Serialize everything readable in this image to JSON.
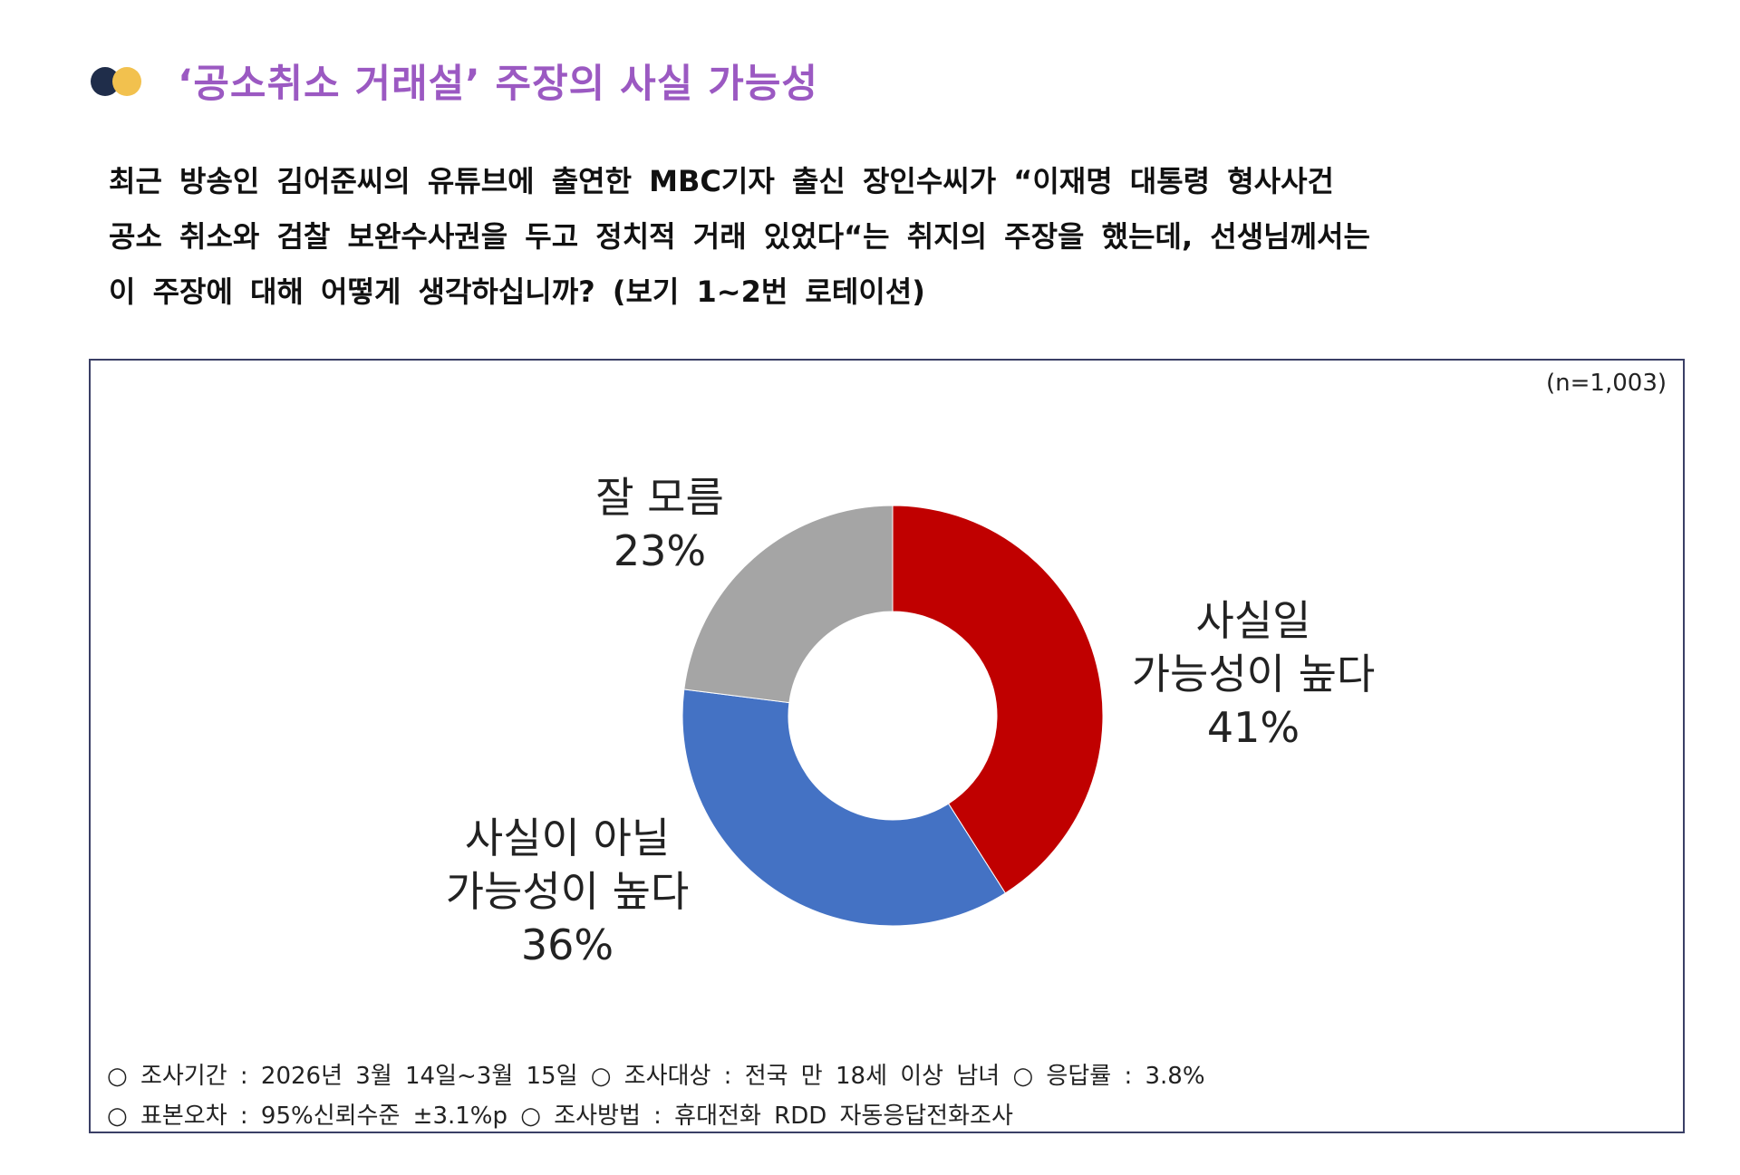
{
  "header": {
    "title": "‘공소취소 거래설’ 주장의 사실 가능성"
  },
  "question": {
    "lines": [
      "최근 방송인 김어준씨의 유튜브에 출연한 MBC기자 출신 장인수씨가 “이재명 대통령 형사사건",
      "공소 취소와 검찰 보완수사권을 두고 정치적 거래 있었다“는 취지의 주장을 했는데, 선생님께서는",
      "이 주장에 대해 어떻게 생각하십니까? (보기 1~2번 로테이션)"
    ]
  },
  "sample_size": "(n=1,003)",
  "chart_data": {
    "type": "pie",
    "donut": true,
    "start_angle_deg": 0,
    "direction": "clockwise",
    "slices": [
      {
        "label_lines": [
          "사실일",
          "가능성이 높다"
        ],
        "value": 41,
        "display": "41%",
        "color": "#c00000"
      },
      {
        "label_lines": [
          "사실이 아닐",
          "가능성이 높다"
        ],
        "value": 36,
        "display": "36%",
        "color": "#4472c4"
      },
      {
        "label_lines": [
          "잘 모름"
        ],
        "value": 23,
        "display": "23%",
        "color": "#a5a5a5"
      }
    ]
  },
  "footer": {
    "line1": "○ 조사기간 : 2026년 3월 14일~3월 15일 ○ 조사대상 : 전국 만 18세 이상 남녀 ○ 응답률 : 3.8%",
    "line2": "○ 표본오차 : 95%신뢰수준 ±3.1%p ○ 조사방법 : 휴대전화 RDD 자동응답전화조사"
  }
}
